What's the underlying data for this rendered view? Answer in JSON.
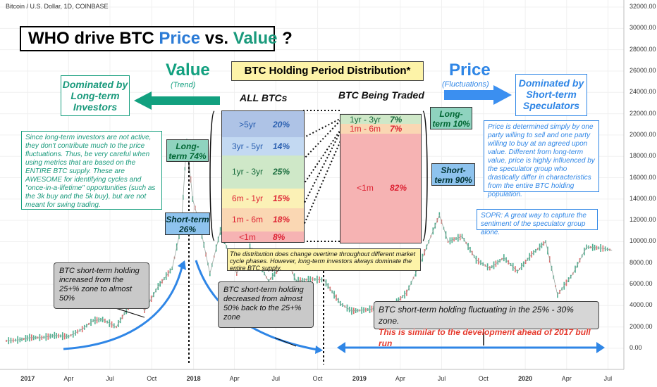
{
  "header": {
    "symbol_line": "Bitcoin / U.S. Dollar, 1D, COINBASE"
  },
  "title": {
    "prefix": "WHO drive BTC ",
    "price": "Price",
    "vs": " vs. ",
    "value": "Value",
    "suffix": " ?"
  },
  "value_side": {
    "heading": "Value",
    "sub": "(Trend)",
    "box": "Dominated by Long-term Investors"
  },
  "price_side": {
    "heading": "Price",
    "sub": "(Fluctuations)",
    "box": "Dominated by Short-term Speculators"
  },
  "distribution": {
    "title": "BTC Holding Period Distribution*",
    "all_label": "ALL BTCs",
    "traded_label": "BTC Being Traded",
    "all_rows": [
      {
        "label": ">5yr",
        "pct": "20%",
        "value": 20,
        "color": "#aec3e6"
      },
      {
        "label": "3yr - 5yr",
        "pct": "14%",
        "value": 14,
        "color": "#c3d9f2"
      },
      {
        "label": "1yr - 3yr",
        "pct": "25%",
        "value": 25,
        "color": "#cfe8c8"
      },
      {
        "label": "6m - 1yr",
        "pct": "15%",
        "value": 15,
        "color": "#fbf1b6"
      },
      {
        "label": "1m - 6m",
        "pct": "18%",
        "value": 18,
        "color": "#fad7b3"
      },
      {
        "label": "<1m",
        "pct": "8%",
        "value": 8,
        "color": "#f6b3b3"
      }
    ],
    "traded_rows": [
      {
        "label": "1yr - 3yr",
        "pct": "7%",
        "value": 7,
        "color": "#cfe8c8"
      },
      {
        "label": "1m - 6m",
        "pct": "7%",
        "value": 7,
        "color": "#fad7b3"
      },
      {
        "label": "<1m",
        "pct": "82%",
        "value": 82,
        "color": "#f6b3b3"
      }
    ],
    "traded_long_term": "Long-term 10%",
    "traded_short_term": "Short-term 90%"
  },
  "notes": {
    "long_term_text": "Since long-term investors are not active, they don't contribute much to the price fluctuations. Thus, be very careful when using metrics that are based on the ENTIRE BTC supply. These are AWESOME for identifying cycles and \"once-in-a-lifetime\" opportunities (such as the 3k buy and the 5k buy), but are not meant for swing trading.",
    "price_text": "Price is determined simply by one party willing to sell and one party willing to buy at an agreed upon value. Different from long-term value, price is highly influenced by the speculator group who drastically differ in characteristics from the entire BTC holding population.",
    "sopr_text": "SOPR: A great way to capture the sentiment of the speculator group alone.",
    "distribution_note": "The distribution does change overtime throughout different market cycle phases. However, long-term investors always dominate the entire BTC supply.",
    "peak_long_term": "Long-term 74%",
    "peak_short_term": "Short-term 26%",
    "increase_box": "BTC short-term holding increased from the 25+% zone to almost 50%",
    "decrease_box": "BTC short-term holding decreased from almost 50% back to the 25+% zone",
    "fluctuate_line1": "BTC short-term holding fluctuating in the 25% - 30% zone.",
    "fluctuate_line2": "This is similar to the development ahead of 2017 bull run"
  },
  "chart_data": {
    "type": "line",
    "title": "Bitcoin / U.S. Dollar, 1D, COINBASE",
    "xlabel": "",
    "ylabel": "",
    "ylim": [
      0,
      32000
    ],
    "y_ticks": [
      "32000.00",
      "30000.00",
      "28000.00",
      "26000.00",
      "24000.00",
      "22000.00",
      "20000.00",
      "18000.00",
      "16000.00",
      "14000.00",
      "12000.00",
      "10000.00",
      "8000.00",
      "6000.00",
      "4000.00",
      "2000.00",
      "0.00"
    ],
    "x_ticks": [
      {
        "label": "2017",
        "bold": true
      },
      {
        "label": "Apr",
        "bold": false
      },
      {
        "label": "Jul",
        "bold": false
      },
      {
        "label": "Oct",
        "bold": false
      },
      {
        "label": "2018",
        "bold": true
      },
      {
        "label": "Apr",
        "bold": false
      },
      {
        "label": "Jul",
        "bold": false
      },
      {
        "label": "Oct",
        "bold": false
      },
      {
        "label": "2019",
        "bold": true
      },
      {
        "label": "Apr",
        "bold": false
      },
      {
        "label": "Jul",
        "bold": false
      },
      {
        "label": "Oct",
        "bold": false
      },
      {
        "label": "2020",
        "bold": true
      },
      {
        "label": "Apr",
        "bold": false
      },
      {
        "label": "Jul",
        "bold": false
      }
    ],
    "series": [
      {
        "x": [
          "2016-11-15",
          "2016-12-15",
          "2017-01-05",
          "2017-02-01",
          "2017-03-01",
          "2017-04-01",
          "2017-05-01",
          "2017-05-25",
          "2017-06-15",
          "2017-07-15",
          "2017-08-15",
          "2017-09-01",
          "2017-09-15",
          "2017-10-15",
          "2017-11-15",
          "2017-12-05",
          "2017-12-17",
          "2017-12-30",
          "2018-01-15",
          "2018-02-06",
          "2018-03-01",
          "2018-04-06",
          "2018-05-05",
          "2018-06-15",
          "2018-07-25",
          "2018-08-15",
          "2018-09-15",
          "2018-10-15",
          "2018-11-20",
          "2018-12-15",
          "2019-01-15",
          "2019-02-15",
          "2019-03-15",
          "2019-04-15",
          "2019-05-15",
          "2019-06-26",
          "2019-07-15",
          "2019-08-15",
          "2019-09-15",
          "2019-10-15",
          "2019-11-15",
          "2019-12-15",
          "2020-01-15",
          "2020-02-15",
          "2020-03-12",
          "2020-04-15",
          "2020-05-15",
          "2020-06-15",
          "2020-07-10"
        ],
        "y": [
          700,
          800,
          1000,
          1000,
          1200,
          1100,
          1800,
          2600,
          2700,
          2000,
          4200,
          4800,
          3500,
          5800,
          7500,
          11500,
          19500,
          14000,
          11500,
          7000,
          11000,
          7000,
          9500,
          6300,
          8300,
          6300,
          6500,
          6400,
          4200,
          3500,
          3600,
          3800,
          4000,
          5200,
          8000,
          12500,
          10000,
          10500,
          8300,
          7500,
          8500,
          7200,
          8800,
          10000,
          5000,
          7000,
          9500,
          9400,
          9200
        ]
      }
    ]
  }
}
